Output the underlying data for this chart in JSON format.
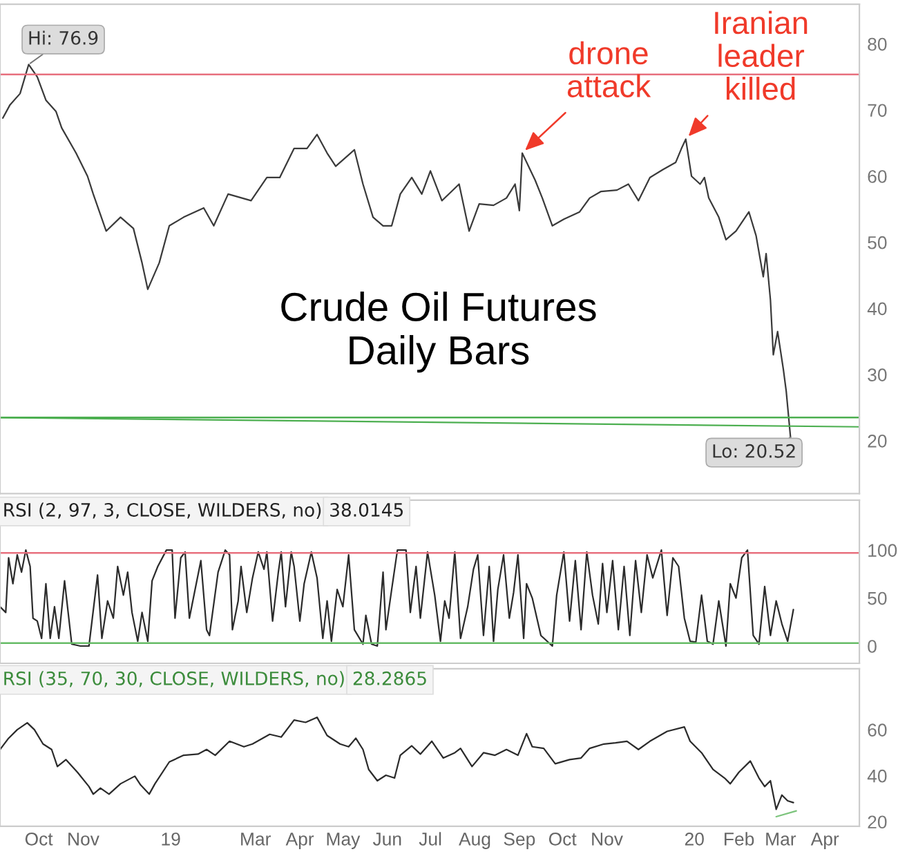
{
  "chart_data": [
    {
      "type": "line",
      "xlim": [
        "2018-09-18",
        "2020-05-09"
      ],
      "ylim": [
        12,
        86
      ],
      "yticks": [
        20,
        30,
        40,
        50,
        60,
        70,
        80
      ],
      "tick_labels": "y",
      "series": [
        {
          "color": "#3a3a3a",
          "x": [
            "2018-09-20",
            "2018-09-25",
            "2018-10-02",
            "2018-10-08",
            "2018-10-14",
            "2018-10-20",
            "2018-10-27",
            "2018-10-31",
            "2018-11-10",
            "2018-11-18",
            "2018-11-22",
            "2018-12-01",
            "2018-12-11",
            "2018-12-20",
            "2018-12-26",
            "2018-12-30",
            "2019-01-07",
            "2019-01-14",
            "2019-01-24",
            "2019-02-07",
            "2019-02-14",
            "2019-02-24",
            "2019-03-12",
            "2019-03-23",
            "2019-04-01",
            "2019-04-11",
            "2019-04-20",
            "2019-04-27",
            "2019-05-04",
            "2019-05-10",
            "2019-05-23",
            "2019-05-29",
            "2019-06-05",
            "2019-06-12",
            "2019-06-18",
            "2019-06-24",
            "2019-07-02",
            "2019-07-09",
            "2019-07-15",
            "2019-07-23",
            "2019-08-04",
            "2019-08-11",
            "2019-08-18",
            "2019-08-28",
            "2019-09-06",
            "2019-09-12",
            "2019-09-15",
            "2019-09-17",
            "2019-09-26",
            "2019-10-01",
            "2019-10-08",
            "2019-10-16",
            "2019-10-27",
            "2019-11-03",
            "2019-11-11",
            "2019-11-22",
            "2019-11-30",
            "2019-12-07",
            "2019-12-15",
            "2019-12-24",
            "2020-01-02",
            "2020-01-06",
            "2020-01-09",
            "2020-01-13",
            "2020-01-19",
            "2020-01-22",
            "2020-01-25",
            "2020-02-01",
            "2020-02-06",
            "2020-02-13",
            "2020-02-22",
            "2020-02-27",
            "2020-03-03",
            "2020-03-05",
            "2020-03-08",
            "2020-03-10",
            "2020-03-13",
            "2020-03-17",
            "2020-03-19",
            "2020-03-22"
          ],
          "values": [
            68.8,
            70.8,
            72.5,
            76.9,
            75.0,
            71.5,
            69.8,
            67.3,
            63.5,
            60.0,
            57.3,
            51.7,
            53.8,
            52.1,
            46.9,
            42.9,
            46.9,
            52.5,
            53.8,
            55.2,
            52.5,
            57.3,
            56.3,
            59.8,
            59.8,
            64.2,
            64.2,
            66.3,
            63.5,
            61.5,
            64.0,
            58.8,
            53.8,
            52.5,
            52.5,
            57.3,
            59.8,
            57.3,
            60.8,
            56.3,
            58.8,
            51.7,
            55.8,
            55.6,
            56.7,
            58.8,
            54.8,
            63.5,
            59.4,
            56.7,
            52.5,
            53.5,
            54.6,
            56.7,
            57.7,
            57.9,
            58.8,
            56.3,
            59.8,
            61.0,
            62.1,
            64.2,
            65.6,
            60.0,
            58.8,
            59.8,
            56.7,
            53.8,
            50.4,
            51.7,
            54.6,
            51.0,
            44.8,
            48.3,
            41.3,
            33.0,
            36.5,
            30.8,
            27.5,
            20.52
          ]
        },
        {
          "type": "line",
          "color": "#4caf50",
          "x": [
            "2018-09-18",
            "2020-05-09"
          ],
          "values": [
            23.5,
            22.1
          ]
        }
      ],
      "ref_lines": [
        {
          "axis": "y",
          "value": 75.4,
          "color": "#e8707e"
        },
        {
          "axis": "y",
          "value": 23.5,
          "color": "#4caf50"
        }
      ],
      "annotations": [
        {
          "text": "Hi: 76.9",
          "x": "2018-10-08",
          "y": 76.9
        },
        {
          "text": "Lo: 20.52",
          "x": "2020-03-22",
          "y": 20.52
        },
        {
          "text": "drone\nattack",
          "x": "2019-09-17",
          "y": 63.5
        },
        {
          "text": "Iranian\nleader\nkilled",
          "x": "2020-01-09",
          "y": 65.6
        },
        "Crude Oil Futures\nDaily Bars"
      ]
    },
    {
      "type": "line",
      "title": "RSI (2, 97, 3, CLOSE, WILDERS, no)",
      "subtitle": "38.0145",
      "xlim": [
        "2018-09-18",
        "2020-05-09"
      ],
      "ylim": [
        -18,
        152
      ],
      "yticks": [
        0,
        50,
        100
      ],
      "tick_labels": "y",
      "series": [
        {
          "color": "#2b2b2b",
          "x": [
            "2018-09-18",
            "2018-09-22",
            "2018-09-24",
            "2018-09-27",
            "2018-09-30",
            "2018-10-03",
            "2018-10-06",
            "2018-10-09",
            "2018-10-11",
            "2018-10-14",
            "2018-10-17",
            "2018-10-20",
            "2018-10-23",
            "2018-10-26",
            "2018-10-29",
            "2018-11-02",
            "2018-11-07",
            "2018-11-13",
            "2018-11-19",
            "2018-11-25",
            "2018-11-28",
            "2018-12-02",
            "2018-12-06",
            "2018-12-09",
            "2018-12-13",
            "2018-12-16",
            "2018-12-19",
            "2018-12-23",
            "2018-12-26",
            "2018-12-30",
            "2019-01-02",
            "2019-01-06",
            "2019-01-12",
            "2019-01-16",
            "2019-01-18",
            "2019-01-22",
            "2019-01-25",
            "2019-01-28",
            "2019-02-01",
            "2019-02-05",
            "2019-02-09",
            "2019-02-11",
            "2019-02-17",
            "2019-02-22",
            "2019-02-25",
            "2019-02-27",
            "2019-03-03",
            "2019-03-05",
            "2019-03-09",
            "2019-03-13",
            "2019-03-17",
            "2019-03-21",
            "2019-03-23",
            "2019-03-27",
            "2019-03-31",
            "2019-04-02",
            "2019-04-05",
            "2019-04-09",
            "2019-04-11",
            "2019-04-15",
            "2019-04-18",
            "2019-04-23",
            "2019-04-27",
            "2019-05-01",
            "2019-05-04",
            "2019-05-07",
            "2019-05-11",
            "2019-05-15",
            "2019-05-19",
            "2019-05-23",
            "2019-05-29",
            "2019-05-31",
            "2019-06-04",
            "2019-06-08",
            "2019-06-12",
            "2019-06-14",
            "2019-06-18",
            "2019-06-22",
            "2019-06-28",
            "2019-07-01",
            "2019-07-05",
            "2019-07-08",
            "2019-07-13",
            "2019-07-18",
            "2019-07-22",
            "2019-07-25",
            "2019-07-28",
            "2019-08-01",
            "2019-08-05",
            "2019-08-10",
            "2019-08-14",
            "2019-08-17",
            "2019-08-21",
            "2019-08-25",
            "2019-08-28",
            "2019-08-31",
            "2019-09-04",
            "2019-09-08",
            "2019-09-11",
            "2019-09-14",
            "2019-09-18",
            "2019-09-20",
            "2019-09-24",
            "2019-09-30",
            "2019-10-08",
            "2019-10-11",
            "2019-10-16",
            "2019-10-20",
            "2019-10-24",
            "2019-10-28",
            "2019-11-01",
            "2019-11-05",
            "2019-11-09",
            "2019-11-12",
            "2019-11-15",
            "2019-11-19",
            "2019-11-23",
            "2019-11-27",
            "2019-12-01",
            "2019-12-05",
            "2019-12-09",
            "2019-12-13",
            "2019-12-17",
            "2019-12-23",
            "2019-12-27",
            "2019-12-31",
            "2020-01-04",
            "2020-01-08",
            "2020-01-12",
            "2020-01-16",
            "2020-01-20",
            "2020-01-24",
            "2020-01-28",
            "2020-02-01",
            "2020-02-06",
            "2020-02-09",
            "2020-02-13",
            "2020-02-17",
            "2020-02-21",
            "2020-02-25",
            "2020-02-29",
            "2020-03-04",
            "2020-03-08",
            "2020-03-12",
            "2020-03-16",
            "2020-03-20",
            "2020-03-24"
          ],
          "values": [
            41,
            35,
            92,
            65,
            95,
            77,
            100,
            83,
            29,
            26,
            8,
            65,
            8,
            41,
            8,
            68,
            2,
            0,
            0,
            74,
            8,
            47,
            29,
            83,
            53,
            77,
            35,
            5,
            35,
            5,
            68,
            83,
            100,
            100,
            29,
            92,
            98,
            29,
            59,
            89,
            17,
            11,
            77,
            100,
            95,
            17,
            47,
            83,
            35,
            71,
            98,
            80,
            98,
            26,
            77,
            98,
            41,
            98,
            83,
            26,
            65,
            98,
            71,
            8,
            47,
            5,
            59,
            41,
            95,
            17,
            2,
            32,
            2,
            0,
            77,
            17,
            59,
            100,
            100,
            35,
            83,
            29,
            98,
            53,
            5,
            47,
            29,
            98,
            8,
            41,
            80,
            95,
            11,
            83,
            5,
            59,
            95,
            29,
            56,
            95,
            8,
            65,
            50,
            11,
            0,
            53,
            98,
            26,
            89,
            17,
            98,
            53,
            23,
            86,
            35,
            89,
            17,
            83,
            11,
            89,
            35,
            95,
            71,
            100,
            32,
            92,
            83,
            29,
            5,
            4,
            53,
            5,
            2,
            47,
            0,
            65,
            50,
            92,
            100,
            11,
            2,
            62,
            11,
            47,
            23,
            5,
            38
          ]
        }
      ],
      "ref_lines": [
        {
          "axis": "y",
          "value": 97,
          "color": "#e8707e"
        },
        {
          "axis": "y",
          "value": 3,
          "color": "#66bb66"
        }
      ]
    },
    {
      "type": "line",
      "title": "RSI (35, 70, 30, CLOSE, WILDERS, no)",
      "subtitle": "28.2865",
      "xlim": [
        "2018-09-18",
        "2020-05-09"
      ],
      "ylim": [
        18,
        86.5
      ],
      "yticks": [
        20,
        40,
        60
      ],
      "xticks": [
        {
          "value": "2018-10-15",
          "label": "Oct"
        },
        {
          "value": "2018-11-15",
          "label": "Nov"
        },
        {
          "value": "2019-01-15",
          "label": "19"
        },
        {
          "value": "2019-03-15",
          "label": "Mar"
        },
        {
          "value": "2019-04-15",
          "label": "Apr"
        },
        {
          "value": "2019-05-15",
          "label": "May"
        },
        {
          "value": "2019-06-15",
          "label": "Jun"
        },
        {
          "value": "2019-07-15",
          "label": "Jul"
        },
        {
          "value": "2019-08-15",
          "label": "Aug"
        },
        {
          "value": "2019-09-15",
          "label": "Sep"
        },
        {
          "value": "2019-10-15",
          "label": "Oct"
        },
        {
          "value": "2019-11-15",
          "label": "Nov"
        },
        {
          "value": "2020-01-15",
          "label": "20"
        },
        {
          "value": "2020-02-15",
          "label": "Feb"
        },
        {
          "value": "2020-03-15",
          "label": "Mar"
        },
        {
          "value": "2020-04-15",
          "label": "Apr"
        }
      ],
      "series": [
        {
          "color": "#2b2b2b",
          "x": [
            "2018-09-18",
            "2018-09-24",
            "2018-09-30",
            "2018-10-07",
            "2018-10-12",
            "2018-10-18",
            "2018-10-24",
            "2018-10-28",
            "2018-11-03",
            "2018-11-11",
            "2018-11-19",
            "2018-11-22",
            "2018-11-27",
            "2018-12-03",
            "2018-12-11",
            "2018-12-21",
            "2018-12-25",
            "2018-12-31",
            "2019-01-04",
            "2019-01-14",
            "2019-01-24",
            "2019-02-03",
            "2019-02-09",
            "2019-02-15",
            "2019-02-25",
            "2019-03-07",
            "2019-03-13",
            "2019-03-25",
            "2019-04-02",
            "2019-04-11",
            "2019-04-19",
            "2019-04-27",
            "2019-05-04",
            "2019-05-13",
            "2019-05-19",
            "2019-05-24",
            "2019-05-29",
            "2019-06-02",
            "2019-06-08",
            "2019-06-14",
            "2019-06-20",
            "2019-06-24",
            "2019-07-02",
            "2019-07-08",
            "2019-07-16",
            "2019-07-24",
            "2019-08-01",
            "2019-08-05",
            "2019-08-13",
            "2019-08-21",
            "2019-08-29",
            "2019-09-06",
            "2019-09-14",
            "2019-09-20",
            "2019-09-24",
            "2019-10-02",
            "2019-10-10",
            "2019-10-20",
            "2019-10-28",
            "2019-11-03",
            "2019-11-13",
            "2019-11-21",
            "2019-11-29",
            "2019-12-07",
            "2019-12-15",
            "2019-12-27",
            "2020-01-08",
            "2020-01-12",
            "2020-01-20",
            "2020-01-28",
            "2020-02-05",
            "2020-02-09",
            "2020-02-15",
            "2020-02-23",
            "2020-02-29",
            "2020-03-04",
            "2020-03-08",
            "2020-03-12",
            "2020-03-16",
            "2020-03-20",
            "2020-03-24"
          ],
          "values": [
            51.4,
            56.3,
            60,
            63,
            60,
            53.8,
            51.4,
            44,
            47,
            41.5,
            35.3,
            32,
            34.6,
            32,
            36.5,
            39.8,
            36,
            32,
            36.5,
            46,
            48.9,
            49.4,
            51.4,
            48.9,
            55,
            52.6,
            53.8,
            58,
            56.8,
            64.2,
            63.2,
            65.4,
            57.5,
            53.8,
            52.6,
            56.3,
            51.4,
            42.7,
            37.8,
            40.2,
            39,
            48.9,
            53,
            49.4,
            55,
            47.7,
            50,
            51.9,
            44,
            50,
            48.9,
            51.4,
            48.9,
            58.3,
            52.6,
            51.9,
            45.2,
            47,
            47.7,
            51.9,
            53.8,
            54.3,
            55,
            51.4,
            55,
            59.3,
            61.2,
            55,
            50,
            42.7,
            39,
            36.5,
            41.5,
            46.4,
            39,
            35.3,
            37.8,
            25.4,
            31.6,
            29.1,
            28.3
          ]
        },
        {
          "type": "line",
          "color": "#7cc47c",
          "x": [
            "2020-03-12",
            "2020-03-26"
          ],
          "values": [
            22.2,
            24.7
          ]
        }
      ]
    }
  ]
}
